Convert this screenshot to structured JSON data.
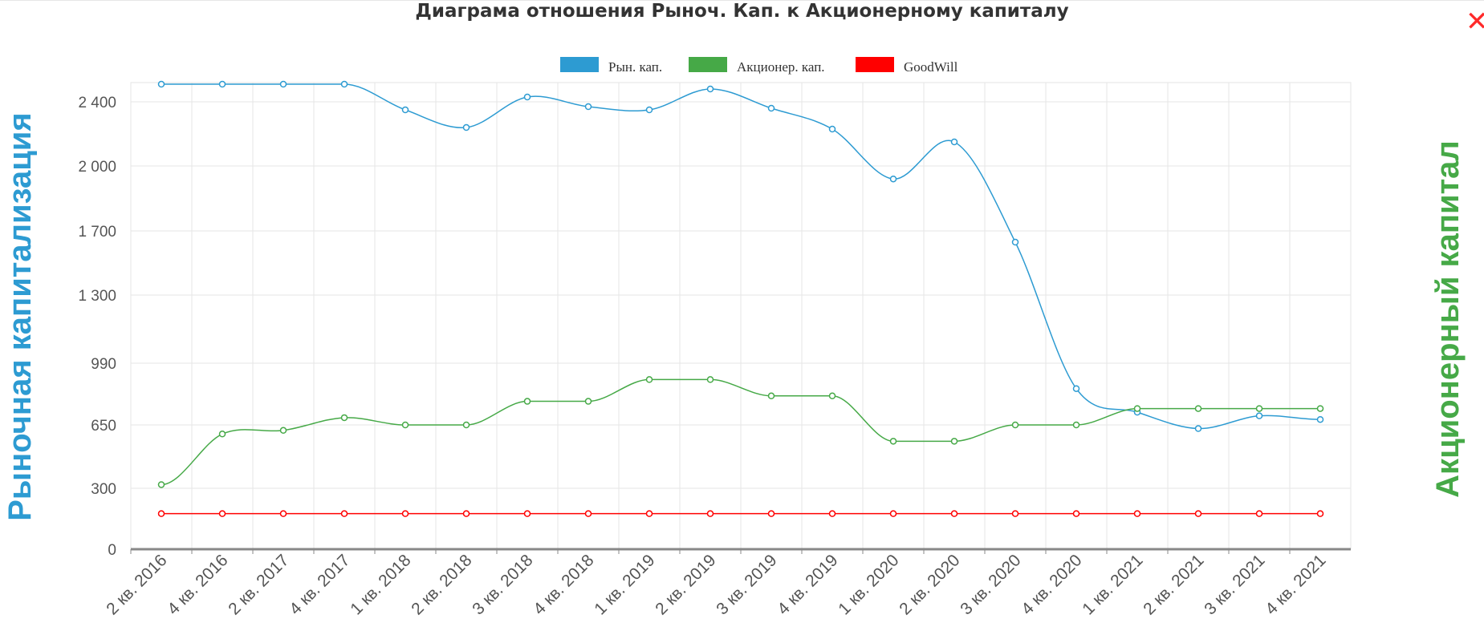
{
  "chart_data": {
    "type": "line",
    "title": "Диаграма отношения Рыноч. Кап. к Акционерному капиталу",
    "ylabel_left": "Рыночная капитализация",
    "ylabel_right": "Акционерный капитал",
    "y_ticks": [
      0,
      300,
      650,
      990,
      1300,
      1700,
      2000,
      2400
    ],
    "y_tick_labels": [
      "0",
      "300",
      "650",
      "990",
      "1 300",
      "1 700",
      "2 000",
      "2 400"
    ],
    "legend_position": "top-center",
    "grid": true,
    "categories": [
      "2 кв. 2016",
      "4 кв. 2016",
      "2 кв. 2017",
      "4 кв. 2017",
      "1 кв. 2018",
      "2 кв. 2018",
      "3 кв. 2018",
      "4 кв. 2018",
      "1 кв. 2019",
      "2 кв. 2019",
      "3 кв. 2019",
      "4 кв. 2019",
      "1 кв. 2020",
      "2 кв. 2020",
      "3 кв. 2020",
      "4 кв. 2020",
      "1 кв. 2021",
      "2 кв. 2021",
      "3 кв. 2021",
      "4 кв. 2021"
    ],
    "series": [
      {
        "name": "Рын. кап.",
        "color": "#2d9bd2",
        "values": [
          2510,
          2510,
          2510,
          2510,
          2350,
          2240,
          2430,
          2370,
          2350,
          2480,
          2360,
          2230,
          1940,
          2150,
          1630,
          850,
          720,
          630,
          700,
          680
        ]
      },
      {
        "name": "Акционер. кап.",
        "color": "#46a947",
        "values": [
          320,
          600,
          620,
          690,
          650,
          650,
          780,
          780,
          900,
          900,
          810,
          810,
          560,
          560,
          650,
          650,
          740,
          740,
          740,
          740
        ]
      },
      {
        "name": "GoodWill",
        "color": "#ff0000",
        "values": [
          175,
          175,
          175,
          175,
          175,
          175,
          175,
          175,
          175,
          175,
          175,
          175,
          175,
          175,
          175,
          175,
          175,
          175,
          175,
          175
        ]
      }
    ]
  }
}
